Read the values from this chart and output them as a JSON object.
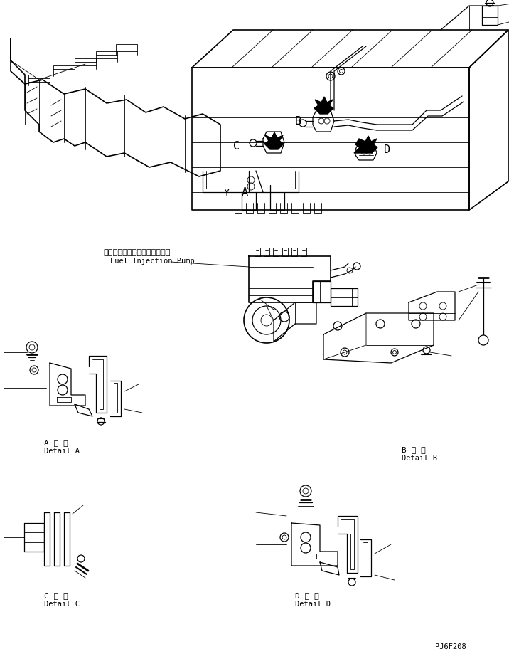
{
  "bg_color": "#ffffff",
  "fig_width": 7.16,
  "fig_height": 9.19,
  "dpi": 100,
  "labels": {
    "fuel_injection_jp": "フェルインジェクションポンプ",
    "fuel_injection_en": "Fuel Injection Pump",
    "label_A_jp": "A 詳 細",
    "label_A_en": "Detail A",
    "label_B_jp": "B 詳 細",
    "label_B_en": "Detail B",
    "label_C_jp": "C 詳 細",
    "label_C_en": "Detail C",
    "label_D_jp": "D 詳 細",
    "label_D_en": "Detail D",
    "part_code": "PJ6F208",
    "letter_A": "A",
    "letter_B": "B",
    "letter_C": "C",
    "letter_D": "D",
    "letter_Y": "Y"
  },
  "lw_main": 0.9,
  "lw_thin": 0.6,
  "lw_thick": 1.2
}
